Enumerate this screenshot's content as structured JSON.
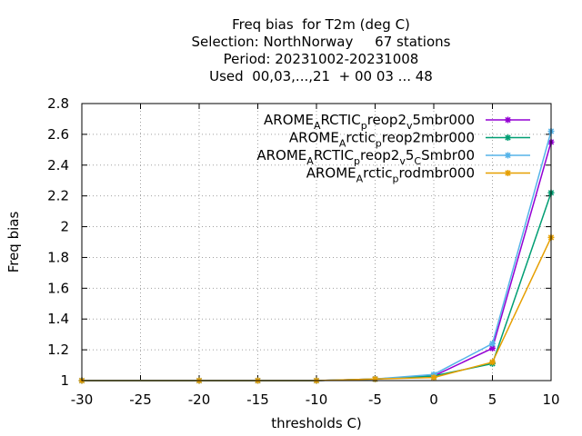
{
  "chart_data": {
    "type": "line",
    "title_lines": [
      "Freq bias  for T2m (deg C)",
      "Selection: NorthNorway     67 stations",
      "Period: 20231002-20231008",
      "Used  00,03,...,21  + 00 03 ... 48"
    ],
    "xlabel": "thresholds C)",
    "ylabel": "Freq bias",
    "xlim": [
      -30,
      10
    ],
    "ylim": [
      1,
      2.8
    ],
    "xticks": [
      -30,
      -25,
      -20,
      -15,
      -10,
      -5,
      0,
      5,
      10
    ],
    "yticks": [
      1,
      1.2,
      1.4,
      1.6,
      1.8,
      2,
      2.2,
      2.4,
      2.6,
      2.8
    ],
    "grid": true,
    "legend_position": "top-right",
    "series": [
      {
        "name": "AROME_ARCTIC_preop2_v5mbr000",
        "legend_parts": [
          [
            "AROME",
            ""
          ],
          [
            "A",
            "sub"
          ],
          [
            "RCTIC",
            ""
          ],
          [
            "p",
            "sub"
          ],
          [
            "reop2",
            ""
          ],
          [
            "v",
            "sub"
          ],
          [
            "5mbr000",
            ""
          ]
        ],
        "color": "#9400d3",
        "x": [
          -30,
          -20,
          -15,
          -10,
          -5,
          0,
          5,
          10
        ],
        "values": [
          1.0,
          1.0,
          1.0,
          1.0,
          1.01,
          1.03,
          1.21,
          2.55
        ]
      },
      {
        "name": "AROME_Arctic_preop2mbr000",
        "legend_parts": [
          [
            "AROME",
            ""
          ],
          [
            "A",
            "sub"
          ],
          [
            "rctic",
            ""
          ],
          [
            "p",
            "sub"
          ],
          [
            "reop2mbr000",
            ""
          ]
        ],
        "color": "#009e73",
        "x": [
          -30,
          -20,
          -15,
          -10,
          -5,
          0,
          5,
          10
        ],
        "values": [
          1.0,
          1.0,
          1.0,
          1.0,
          1.01,
          1.03,
          1.11,
          2.22
        ]
      },
      {
        "name": "AROME_ARCTIC_preop2_v5_CSmbr00",
        "legend_parts": [
          [
            "AROME",
            ""
          ],
          [
            "A",
            "sub"
          ],
          [
            "RCTIC",
            ""
          ],
          [
            "p",
            "sub"
          ],
          [
            "reop2",
            ""
          ],
          [
            "v",
            "sub"
          ],
          [
            "5",
            ""
          ],
          [
            "C",
            "sub"
          ],
          [
            "Smbr00",
            ""
          ]
        ],
        "color": "#56b4e9",
        "x": [
          -30,
          -20,
          -15,
          -10,
          -5,
          0,
          5,
          10
        ],
        "values": [
          1.0,
          1.0,
          1.0,
          1.0,
          1.01,
          1.04,
          1.24,
          2.62
        ]
      },
      {
        "name": "AROME_Arctic_prodmbr000",
        "legend_parts": [
          [
            "AROME",
            ""
          ],
          [
            "A",
            "sub"
          ],
          [
            "rctic",
            ""
          ],
          [
            "p",
            "sub"
          ],
          [
            "rodmbr000",
            ""
          ]
        ],
        "color": "#e69f00",
        "x": [
          -30,
          -20,
          -15,
          -10,
          -5,
          0,
          5,
          10
        ],
        "values": [
          1.0,
          1.0,
          1.0,
          1.0,
          1.01,
          1.02,
          1.12,
          1.93
        ]
      }
    ]
  }
}
